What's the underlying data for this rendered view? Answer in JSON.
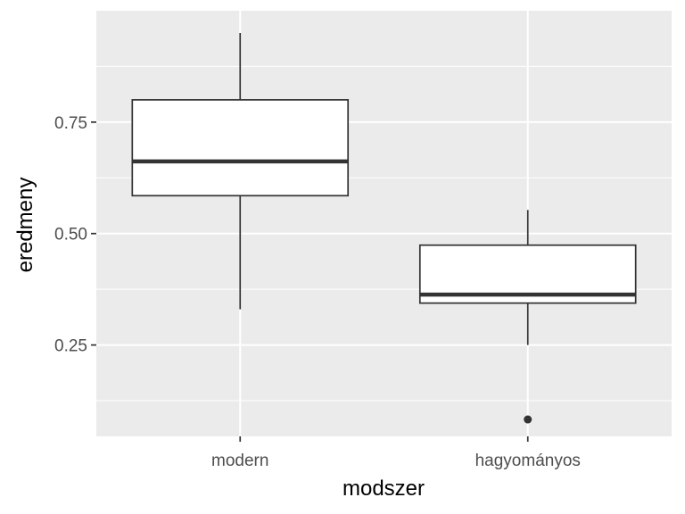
{
  "chart_data": {
    "type": "boxplot",
    "title": "",
    "xlabel": "modszer",
    "ylabel": "eredmeny",
    "categories": [
      "modern",
      "hagyományos"
    ],
    "boxes": [
      {
        "category": "modern",
        "whisker_low": 0.33,
        "q1": 0.585,
        "median": 0.662,
        "q3": 0.8,
        "whisker_high": 0.95,
        "outliers": []
      },
      {
        "category": "hagyományos",
        "whisker_low": 0.25,
        "q1": 0.344,
        "median": 0.363,
        "q3": 0.474,
        "whisker_high": 0.553,
        "outliers": [
          0.083
        ]
      }
    ],
    "ylim": [
      0.045,
      1.0
    ],
    "yticks": [
      0.25,
      0.5,
      0.75
    ],
    "ytick_labels": [
      "0.25",
      "0.50",
      "0.75"
    ],
    "grid": true,
    "colors": {
      "panel_background": "#ebebeb",
      "grid_line": "#ffffff",
      "box_fill": "#ffffff",
      "box_stroke": "#333333",
      "median_line": "#333333",
      "outlier": "#333333",
      "tick_label": "#4d4d4d",
      "axis_title": "#000000"
    }
  }
}
